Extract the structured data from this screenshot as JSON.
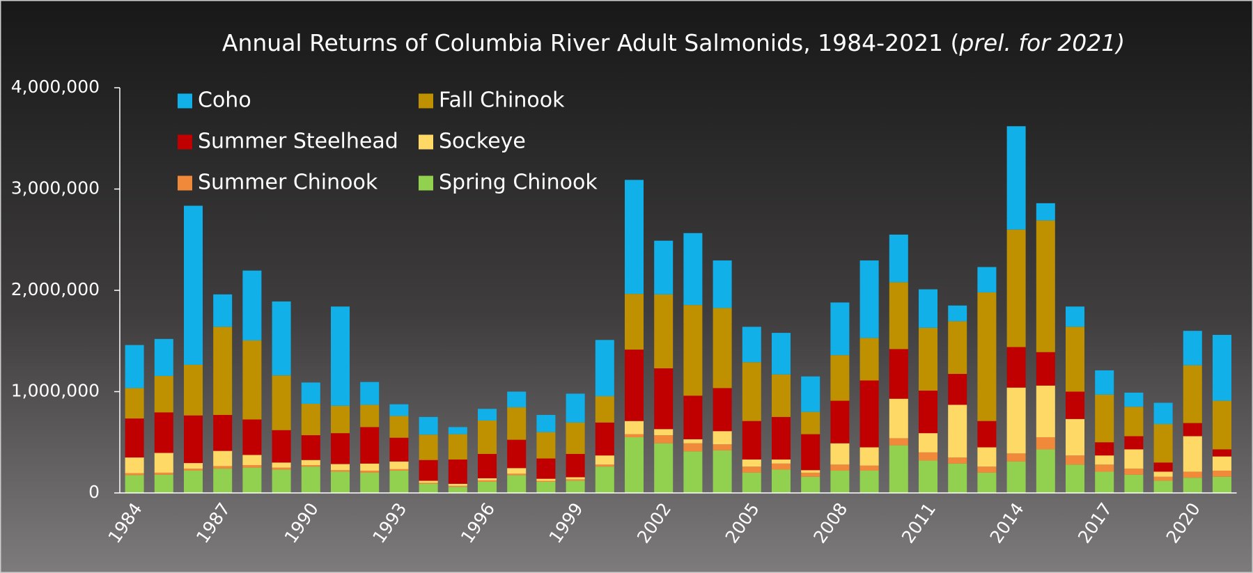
{
  "chart_data": {
    "type": "stacked_bar",
    "title": "Annual Returns of Columbia River Adult Salmonids, 1984-2021 (",
    "title_note": "prel. for 2021)",
    "categories": [
      "1984",
      null,
      null,
      "1987",
      null,
      null,
      "1990",
      null,
      null,
      "1993",
      null,
      null,
      "1996",
      null,
      null,
      "1999",
      null,
      null,
      "2002",
      null,
      null,
      "2005",
      null,
      null,
      "2008",
      null,
      null,
      "2011",
      null,
      null,
      "2014",
      null,
      null,
      "2017",
      null,
      null,
      "2020",
      null
    ],
    "series": [
      {
        "name": "Coho",
        "color": "#12b0e8",
        "values": [
          425000,
          365000,
          1570000,
          320000,
          690000,
          730000,
          210000,
          980000,
          225000,
          115000,
          175000,
          70000,
          115000,
          155000,
          170000,
          285000,
          555000,
          1125000,
          530000,
          710000,
          470000,
          350000,
          410000,
          350000,
          520000,
          765000,
          470000,
          380000,
          155000,
          250000,
          1020000,
          170000,
          200000,
          240000,
          140000,
          210000,
          340000,
          650000
        ]
      },
      {
        "name": "Fall Chinook",
        "color": "#bf9000",
        "values": [
          300000,
          360000,
          500000,
          870000,
          780000,
          540000,
          310000,
          270000,
          220000,
          215000,
          250000,
          250000,
          330000,
          320000,
          260000,
          310000,
          260000,
          550000,
          730000,
          895000,
          790000,
          580000,
          420000,
          220000,
          450000,
          420000,
          660000,
          620000,
          520000,
          1270000,
          1160000,
          1300000,
          640000,
          470000,
          290000,
          380000,
          570000,
          480000
        ]
      },
      {
        "name": "Summer Steelhead",
        "color": "#c00000",
        "values": [
          385000,
          400000,
          470000,
          355000,
          350000,
          320000,
          245000,
          305000,
          360000,
          235000,
          205000,
          240000,
          240000,
          280000,
          200000,
          230000,
          325000,
          705000,
          600000,
          430000,
          425000,
          380000,
          420000,
          355000,
          420000,
          660000,
          490000,
          420000,
          305000,
          260000,
          400000,
          330000,
          270000,
          130000,
          130000,
          90000,
          130000,
          70000
        ]
      },
      {
        "name": "Sockeye",
        "color": "#ffd966",
        "values": [
          155000,
          195000,
          55000,
          150000,
          100000,
          50000,
          50000,
          60000,
          70000,
          75000,
          20000,
          20000,
          20000,
          55000,
          20000,
          20000,
          90000,
          130000,
          60000,
          40000,
          130000,
          70000,
          40000,
          25000,
          210000,
          180000,
          390000,
          190000,
          520000,
          190000,
          650000,
          510000,
          360000,
          90000,
          190000,
          50000,
          350000,
          140000
        ]
      },
      {
        "name": "Summer Chinook",
        "color": "#f08a3a",
        "values": [
          20000,
          20000,
          20000,
          25000,
          25000,
          20000,
          15000,
          15000,
          20000,
          15000,
          10000,
          10000,
          15000,
          15000,
          10000,
          15000,
          20000,
          30000,
          80000,
          80000,
          60000,
          60000,
          60000,
          40000,
          60000,
          50000,
          70000,
          80000,
          60000,
          60000,
          80000,
          120000,
          90000,
          70000,
          60000,
          40000,
          60000,
          60000
        ]
      },
      {
        "name": "Spring Chinook",
        "color": "#92d050",
        "values": [
          175000,
          180000,
          220000,
          240000,
          250000,
          230000,
          260000,
          210000,
          200000,
          220000,
          90000,
          60000,
          110000,
          175000,
          110000,
          120000,
          260000,
          550000,
          490000,
          410000,
          420000,
          200000,
          230000,
          160000,
          220000,
          220000,
          470000,
          320000,
          290000,
          200000,
          310000,
          430000,
          280000,
          210000,
          180000,
          120000,
          150000,
          160000
        ]
      }
    ],
    "ylim": [
      0,
      4000000
    ],
    "yticks": [
      0,
      {
        "value": 1000000,
        "label": "1,000,000"
      },
      {
        "value": 2000000,
        "label": "2,000,000"
      },
      {
        "value": 3000000,
        "label": "3,000,000"
      },
      {
        "value": 4000000,
        "label": "4,000,000"
      }
    ]
  }
}
